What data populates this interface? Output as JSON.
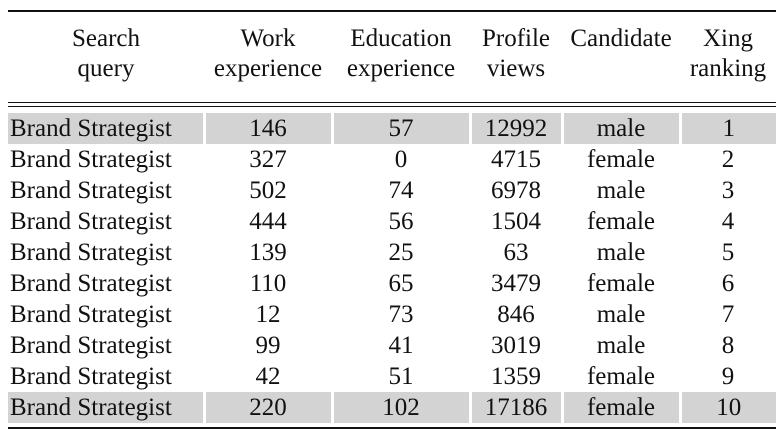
{
  "table": {
    "headers": [
      [
        "Search",
        "query"
      ],
      [
        "Work",
        "experience"
      ],
      [
        "Education",
        "experience"
      ],
      [
        "Profile",
        "views"
      ],
      [
        "Candidate",
        ""
      ],
      [
        "Xing",
        "ranking"
      ]
    ],
    "rows": [
      {
        "query": "Brand Strategist",
        "work": "146",
        "education": "57",
        "views": "12992",
        "candidate": "male",
        "rank": "1",
        "highlight": true
      },
      {
        "query": "Brand Strategist",
        "work": "327",
        "education": "0",
        "views": "4715",
        "candidate": "female",
        "rank": "2",
        "highlight": false
      },
      {
        "query": "Brand Strategist",
        "work": "502",
        "education": "74",
        "views": "6978",
        "candidate": "male",
        "rank": "3",
        "highlight": false
      },
      {
        "query": "Brand Strategist",
        "work": "444",
        "education": "56",
        "views": "1504",
        "candidate": "female",
        "rank": "4",
        "highlight": false
      },
      {
        "query": "Brand Strategist",
        "work": "139",
        "education": "25",
        "views": "63",
        "candidate": "male",
        "rank": "5",
        "highlight": false
      },
      {
        "query": "Brand Strategist",
        "work": "110",
        "education": "65",
        "views": "3479",
        "candidate": "female",
        "rank": "6",
        "highlight": false
      },
      {
        "query": "Brand Strategist",
        "work": "12",
        "education": "73",
        "views": "846",
        "candidate": "male",
        "rank": "7",
        "highlight": false
      },
      {
        "query": "Brand Strategist",
        "work": "99",
        "education": "41",
        "views": "3019",
        "candidate": "male",
        "rank": "8",
        "highlight": false
      },
      {
        "query": "Brand Strategist",
        "work": "42",
        "education": "51",
        "views": "1359",
        "candidate": "female",
        "rank": "9",
        "highlight": false
      },
      {
        "query": "Brand Strategist",
        "work": "220",
        "education": "102",
        "views": "17186",
        "candidate": "female",
        "rank": "10",
        "highlight": true
      }
    ],
    "highlight_color": "#d3d3d3"
  }
}
